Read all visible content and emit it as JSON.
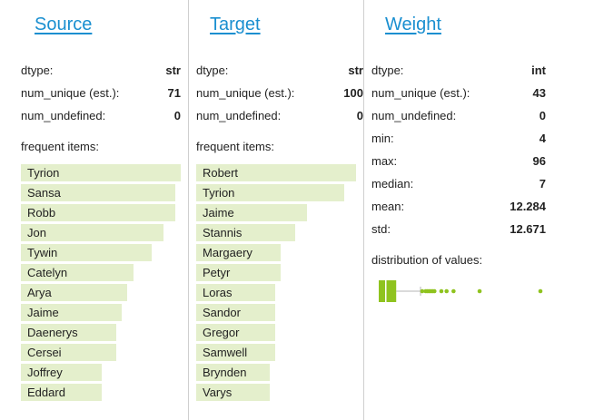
{
  "columns": [
    {
      "title": "Source",
      "stats": [
        {
          "label": "dtype:",
          "value": "str"
        },
        {
          "label": "num_unique (est.):",
          "value": "71"
        },
        {
          "label": "num_undefined:",
          "value": "0"
        }
      ],
      "frequent_label": "frequent items:",
      "items": [
        {
          "label": "Tyrion",
          "fraction": 1.0
        },
        {
          "label": "Sansa",
          "fraction": 0.965
        },
        {
          "label": "Robb",
          "fraction": 0.965
        },
        {
          "label": "Jon",
          "fraction": 0.89
        },
        {
          "label": "Tywin",
          "fraction": 0.82
        },
        {
          "label": "Catelyn",
          "fraction": 0.705
        },
        {
          "label": "Arya",
          "fraction": 0.665
        },
        {
          "label": "Jaime",
          "fraction": 0.63
        },
        {
          "label": "Daenerys",
          "fraction": 0.595
        },
        {
          "label": "Cersei",
          "fraction": 0.595
        },
        {
          "label": "Joffrey",
          "fraction": 0.505
        },
        {
          "label": "Eddard",
          "fraction": 0.505
        }
      ]
    },
    {
      "title": "Target",
      "stats": [
        {
          "label": "dtype:",
          "value": "str"
        },
        {
          "label": "num_unique (est.):",
          "value": "100"
        },
        {
          "label": "num_undefined:",
          "value": "0"
        }
      ],
      "frequent_label": "frequent items:",
      "items": [
        {
          "label": "Robert",
          "fraction": 1.0
        },
        {
          "label": "Tyrion",
          "fraction": 0.925
        },
        {
          "label": "Jaime",
          "fraction": 0.695
        },
        {
          "label": "Stannis",
          "fraction": 0.62
        },
        {
          "label": "Margaery",
          "fraction": 0.53
        },
        {
          "label": "Petyr",
          "fraction": 0.53
        },
        {
          "label": "Loras",
          "fraction": 0.495
        },
        {
          "label": "Sandor",
          "fraction": 0.495
        },
        {
          "label": "Gregor",
          "fraction": 0.495
        },
        {
          "label": "Samwell",
          "fraction": 0.495
        },
        {
          "label": "Brynden",
          "fraction": 0.46
        },
        {
          "label": "Varys",
          "fraction": 0.46
        }
      ]
    },
    {
      "title": "Weight",
      "stats": [
        {
          "label": "dtype:",
          "value": "int"
        },
        {
          "label": "num_unique (est.):",
          "value": "43"
        },
        {
          "label": "num_undefined:",
          "value": "0"
        },
        {
          "label": "min:",
          "value": "4"
        },
        {
          "label": "max:",
          "value": "96"
        },
        {
          "label": "median:",
          "value": "7"
        },
        {
          "label": "mean:",
          "value": "12.284"
        },
        {
          "label": "std:",
          "value": "12.671"
        }
      ],
      "distribution_label": "distribution of values:",
      "boxplot": {
        "min": 4,
        "q1": 4,
        "median": 7,
        "q3": 13,
        "whisker_high": 27,
        "max": 96,
        "outliers": [
          28,
          30,
          31,
          32,
          33,
          34,
          35,
          39,
          42,
          46,
          61,
          96
        ],
        "color": "#8fc31f"
      }
    }
  ]
}
